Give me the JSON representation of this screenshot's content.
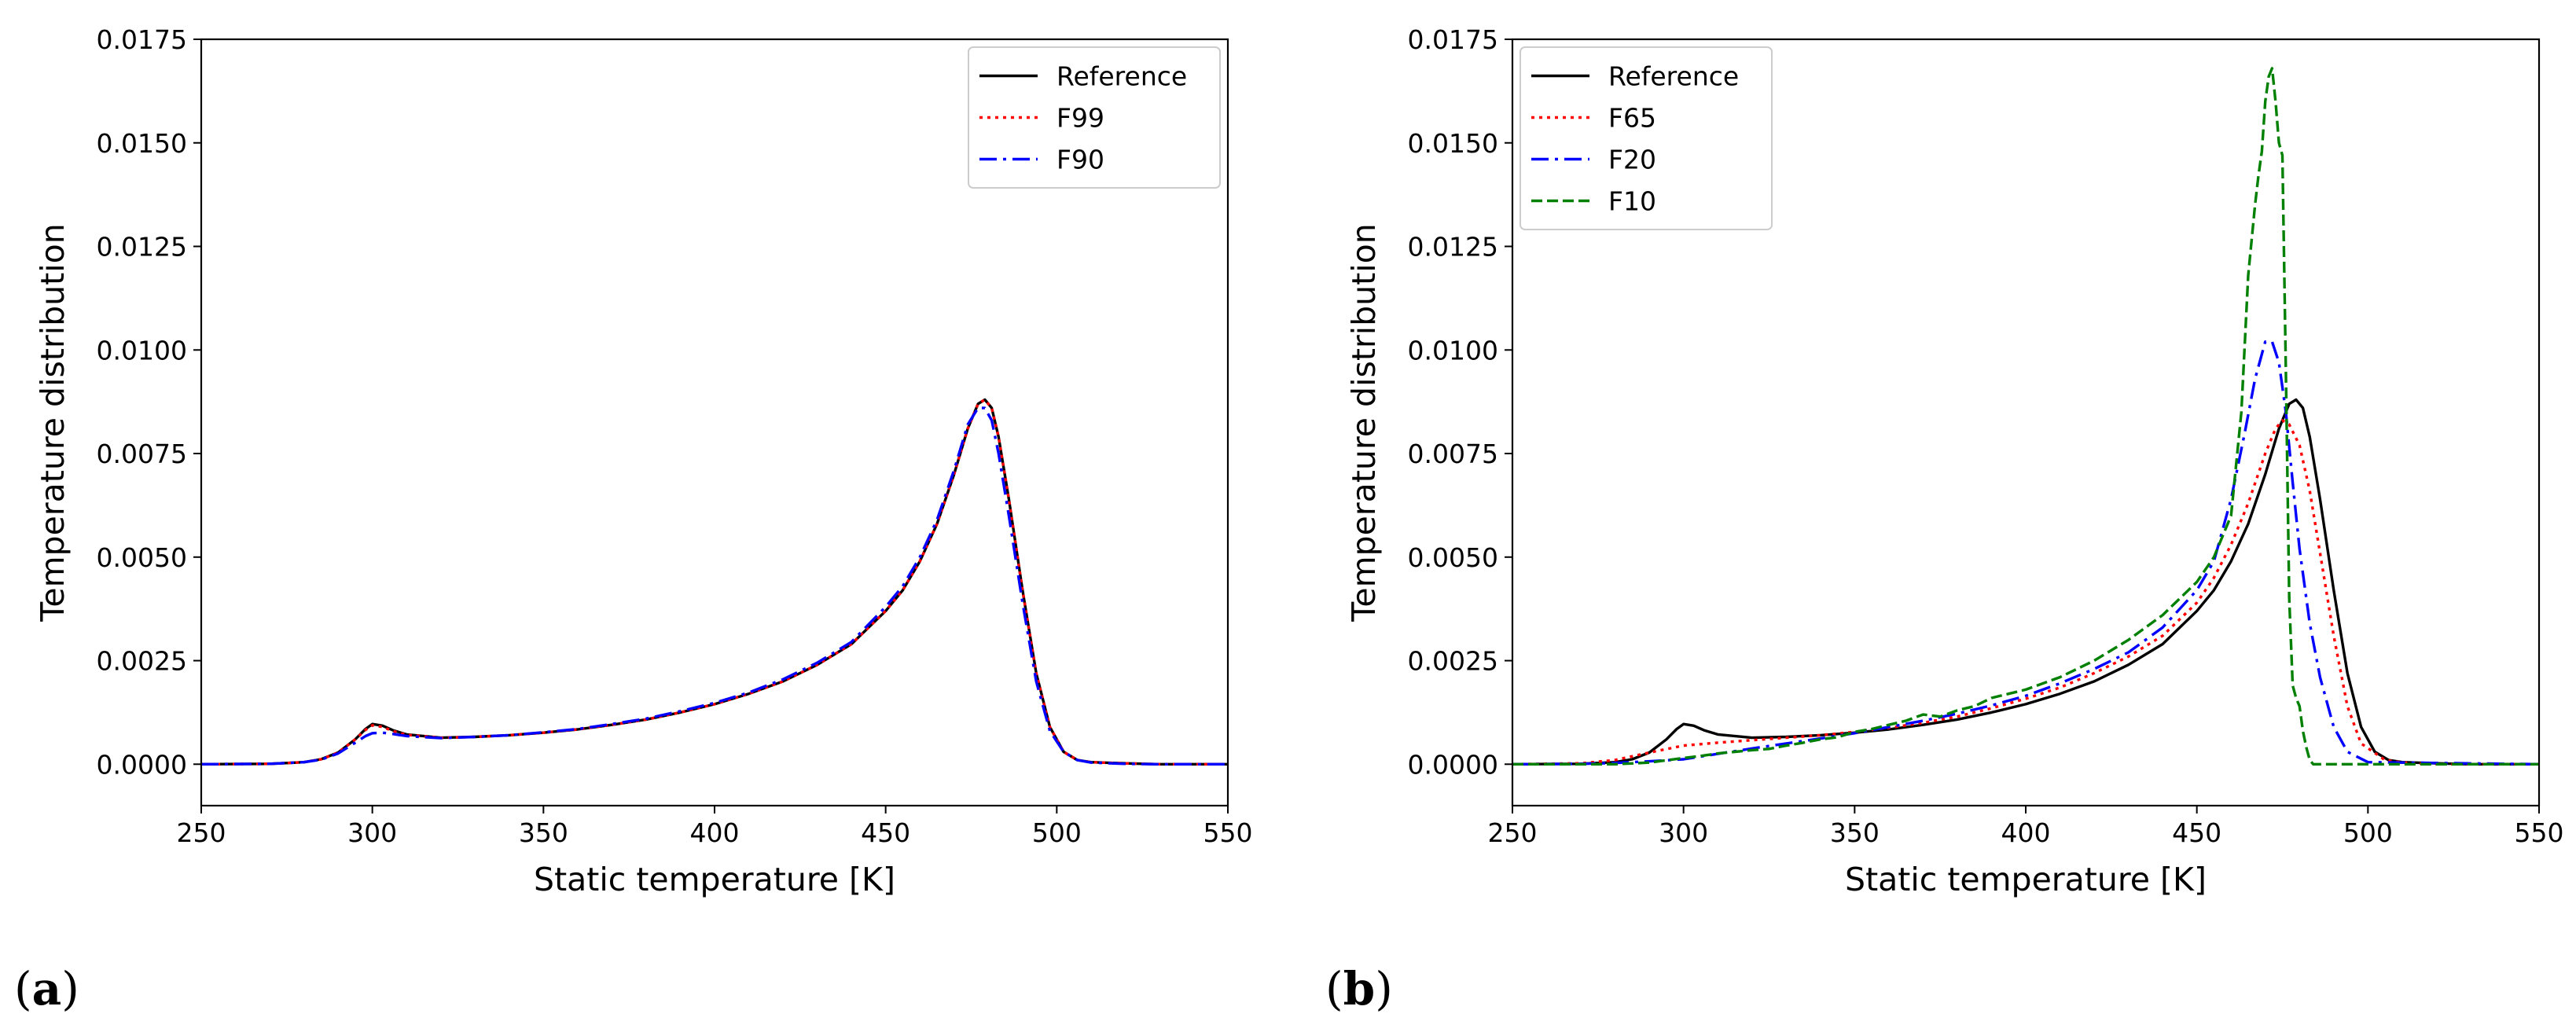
{
  "chart_data": [
    {
      "type": "line",
      "panel_label": "(a)",
      "panel_letter": "a",
      "xlabel": "Static temperature [K]",
      "ylabel": "Temperature distribution",
      "xlim": [
        250,
        550
      ],
      "ylim": [
        -0.001,
        0.0175
      ],
      "xticks": [
        250,
        300,
        350,
        400,
        450,
        500,
        550
      ],
      "xtick_labels": [
        "250",
        "300",
        "350",
        "400",
        "450",
        "500",
        "550"
      ],
      "yticks": [
        0.0,
        0.0025,
        0.005,
        0.0075,
        0.01,
        0.0125,
        0.015,
        0.0175
      ],
      "ytick_labels": [
        "0.0000",
        "0.0025",
        "0.0050",
        "0.0075",
        "0.0100",
        "0.0125",
        "0.0150",
        "0.0175"
      ],
      "grid": false,
      "legend_position": "top-right",
      "series": [
        {
          "name": "Reference",
          "color": "#000000",
          "style": "solid",
          "x": [
            250,
            270,
            280,
            285,
            290,
            295,
            298,
            300,
            303,
            306,
            310,
            320,
            330,
            340,
            350,
            360,
            370,
            380,
            390,
            400,
            410,
            420,
            430,
            440,
            450,
            455,
            460,
            465,
            470,
            474,
            477,
            479,
            481,
            483,
            486,
            490,
            494,
            498,
            502,
            506,
            510,
            520,
            530,
            550
          ],
          "y": [
            0.0,
            1e-05,
            5e-05,
            0.00012,
            0.00028,
            0.0006,
            0.00085,
            0.00097,
            0.00093,
            0.00082,
            0.00072,
            0.00064,
            0.00066,
            0.0007,
            0.00076,
            0.00084,
            0.00095,
            0.00108,
            0.00125,
            0.00145,
            0.0017,
            0.002,
            0.0024,
            0.0029,
            0.0037,
            0.0042,
            0.0049,
            0.0058,
            0.007,
            0.0081,
            0.0087,
            0.0088,
            0.0086,
            0.0079,
            0.0064,
            0.0042,
            0.0022,
            0.0009,
            0.0003,
            0.0001,
            5e-05,
            2e-05,
            0.0,
            0.0
          ]
        },
        {
          "name": "F99",
          "color": "#ff0000",
          "style": "dotted",
          "x": [
            250,
            270,
            280,
            285,
            290,
            295,
            298,
            300,
            303,
            306,
            310,
            320,
            330,
            340,
            350,
            360,
            370,
            380,
            390,
            400,
            410,
            420,
            430,
            440,
            450,
            455,
            460,
            465,
            470,
            474,
            477,
            479,
            481,
            483,
            486,
            490,
            494,
            498,
            502,
            506,
            510,
            520,
            530,
            550
          ],
          "y": [
            0.0,
            1e-05,
            5e-05,
            0.00012,
            0.00028,
            0.0006,
            0.00083,
            0.00094,
            0.0009,
            0.0008,
            0.00071,
            0.00064,
            0.00066,
            0.0007,
            0.00076,
            0.00084,
            0.00095,
            0.00108,
            0.00125,
            0.00145,
            0.0017,
            0.002,
            0.0024,
            0.0029,
            0.0037,
            0.0042,
            0.0049,
            0.0058,
            0.007,
            0.0081,
            0.0087,
            0.0088,
            0.0086,
            0.0079,
            0.0064,
            0.0042,
            0.0022,
            0.0009,
            0.0003,
            0.0001,
            5e-05,
            2e-05,
            0.0,
            0.0
          ]
        },
        {
          "name": "F90",
          "color": "#0000ff",
          "style": "dashdot",
          "x": [
            250,
            270,
            280,
            285,
            290,
            295,
            298,
            300,
            303,
            306,
            310,
            320,
            330,
            340,
            350,
            360,
            370,
            380,
            390,
            400,
            410,
            420,
            430,
            440,
            450,
            455,
            460,
            465,
            470,
            474,
            477,
            479,
            481,
            483,
            486,
            490,
            494,
            498,
            502,
            506,
            510,
            520,
            530,
            550
          ],
          "y": [
            0.0,
            1e-05,
            5e-05,
            0.00011,
            0.00026,
            0.00052,
            0.00068,
            0.00075,
            0.00076,
            0.00073,
            0.00068,
            0.00063,
            0.00066,
            0.0007,
            0.00077,
            0.00085,
            0.00097,
            0.0011,
            0.00128,
            0.00148,
            0.00173,
            0.00205,
            0.00245,
            0.00295,
            0.0038,
            0.0043,
            0.005,
            0.0059,
            0.0071,
            0.0082,
            0.0086,
            0.0086,
            0.0083,
            0.0075,
            0.006,
            0.0039,
            0.002,
            0.0008,
            0.0003,
            0.0001,
            4e-05,
            1e-05,
            0.0,
            0.0
          ]
        }
      ]
    },
    {
      "type": "line",
      "panel_label": "(b)",
      "panel_letter": "b",
      "xlabel": "Static temperature [K]",
      "ylabel": "Temperature distribution",
      "xlim": [
        250,
        550
      ],
      "ylim": [
        -0.001,
        0.0175
      ],
      "xticks": [
        250,
        300,
        350,
        400,
        450,
        500,
        550
      ],
      "xtick_labels": [
        "250",
        "300",
        "350",
        "400",
        "450",
        "500",
        "550"
      ],
      "yticks": [
        0.0,
        0.0025,
        0.005,
        0.0075,
        0.01,
        0.0125,
        0.015,
        0.0175
      ],
      "ytick_labels": [
        "0.0000",
        "0.0025",
        "0.0050",
        "0.0075",
        "0.0100",
        "0.0125",
        "0.0150",
        "0.0175"
      ],
      "grid": false,
      "legend_position": "top-left",
      "series": [
        {
          "name": "Reference",
          "color": "#000000",
          "style": "solid",
          "x": [
            250,
            270,
            280,
            285,
            290,
            295,
            298,
            300,
            303,
            306,
            310,
            320,
            330,
            340,
            350,
            360,
            370,
            380,
            390,
            400,
            410,
            420,
            430,
            440,
            450,
            455,
            460,
            465,
            470,
            474,
            477,
            479,
            481,
            483,
            486,
            490,
            494,
            498,
            502,
            506,
            510,
            520,
            530,
            550
          ],
          "y": [
            0.0,
            1e-05,
            5e-05,
            0.00012,
            0.00028,
            0.0006,
            0.00085,
            0.00097,
            0.00093,
            0.00082,
            0.00072,
            0.00064,
            0.00066,
            0.0007,
            0.00076,
            0.00084,
            0.00095,
            0.00108,
            0.00125,
            0.00145,
            0.0017,
            0.002,
            0.0024,
            0.0029,
            0.0037,
            0.0042,
            0.0049,
            0.0058,
            0.007,
            0.0081,
            0.0087,
            0.0088,
            0.0086,
            0.0079,
            0.0064,
            0.0042,
            0.0022,
            0.0009,
            0.0003,
            0.0001,
            5e-05,
            2e-05,
            0.0,
            0.0
          ]
        },
        {
          "name": "F65",
          "color": "#ff0000",
          "style": "dotted",
          "x": [
            250,
            270,
            280,
            290,
            300,
            310,
            320,
            330,
            340,
            350,
            360,
            370,
            380,
            390,
            400,
            410,
            420,
            430,
            440,
            450,
            455,
            460,
            465,
            470,
            473,
            475,
            477,
            480,
            483,
            486,
            490,
            494,
            498,
            505,
            510,
            520,
            550
          ],
          "y": [
            0.0,
            2e-05,
            0.0001,
            0.00028,
            0.00045,
            0.00052,
            0.00058,
            0.00064,
            0.0007,
            0.00078,
            0.00088,
            0.001,
            0.00115,
            0.00135,
            0.00158,
            0.00185,
            0.0022,
            0.0026,
            0.0031,
            0.0039,
            0.0045,
            0.0053,
            0.0063,
            0.0075,
            0.0081,
            0.0083,
            0.0082,
            0.0077,
            0.0066,
            0.0051,
            0.0031,
            0.0014,
            0.0005,
            0.0001,
            4e-05,
            0.0,
            0.0
          ]
        },
        {
          "name": "F20",
          "color": "#0000ff",
          "style": "dashdot",
          "x": [
            250,
            270,
            280,
            290,
            300,
            310,
            320,
            330,
            340,
            350,
            360,
            370,
            380,
            390,
            400,
            410,
            420,
            430,
            440,
            450,
            455,
            460,
            464,
            467,
            470,
            472,
            474,
            476,
            478,
            480,
            483,
            486,
            490,
            494,
            500,
            550
          ],
          "y": [
            0.0,
            1e-05,
            3e-05,
            7e-05,
            0.00012,
            0.00025,
            0.00038,
            0.0005,
            0.00062,
            0.00075,
            0.0009,
            0.00105,
            0.00122,
            0.00142,
            0.00165,
            0.00195,
            0.0023,
            0.0027,
            0.0033,
            0.0042,
            0.0049,
            0.0064,
            0.008,
            0.0093,
            0.0102,
            0.0102,
            0.0097,
            0.0085,
            0.0068,
            0.0052,
            0.0034,
            0.0021,
            0.0009,
            0.0003,
            5e-05,
            0.0
          ]
        },
        {
          "name": "F10",
          "color": "#008000",
          "style": "dashed",
          "x": [
            250,
            280,
            290,
            300,
            305,
            310,
            315,
            320,
            325,
            330,
            335,
            340,
            345,
            350,
            355,
            360,
            365,
            370,
            375,
            380,
            385,
            390,
            395,
            400,
            410,
            420,
            430,
            440,
            450,
            455,
            460,
            463,
            465,
            467,
            468,
            469,
            470,
            471,
            472,
            473,
            474,
            475,
            476,
            477,
            478,
            479,
            480,
            481,
            482,
            483,
            484,
            550
          ],
          "y": [
            0.0,
            0.0,
            4e-05,
            0.00015,
            0.0002,
            0.00026,
            0.0003,
            0.00034,
            0.00037,
            0.00045,
            0.00052,
            0.0006,
            0.00065,
            0.00078,
            0.00085,
            0.00095,
            0.00105,
            0.0012,
            0.00115,
            0.0013,
            0.0014,
            0.0016,
            0.0017,
            0.0018,
            0.0021,
            0.0025,
            0.003,
            0.0036,
            0.0044,
            0.005,
            0.006,
            0.0085,
            0.0118,
            0.0135,
            0.0142,
            0.0148,
            0.016,
            0.0166,
            0.0168,
            0.016,
            0.015,
            0.0147,
            0.0095,
            0.004,
            0.0019,
            0.0016,
            0.0014,
            0.0008,
            0.0004,
            0.0001,
            0.0,
            0.0
          ]
        }
      ]
    }
  ]
}
